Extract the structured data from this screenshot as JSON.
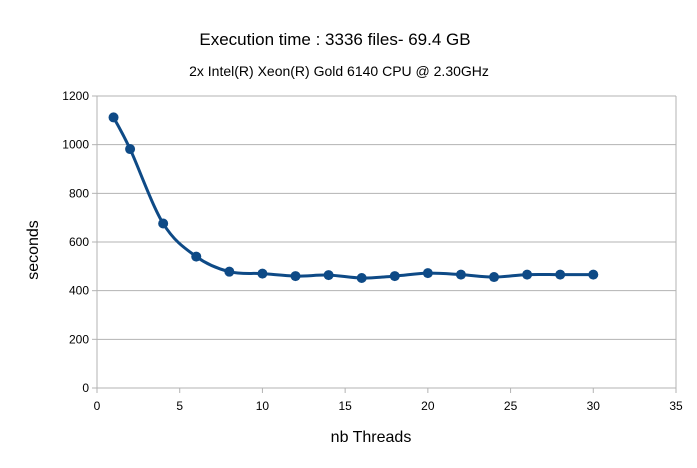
{
  "chart_data": {
    "type": "line",
    "title": "Execution time : 3336 files- 69.4 GB",
    "subtitle": "2x Intel(R) Xeon(R) Gold 6140 CPU @ 2.30GHz",
    "xlabel": "nb Threads",
    "ylabel": "seconds",
    "xlim": [
      0,
      35
    ],
    "ylim": [
      0,
      1200
    ],
    "xticks": [
      0,
      5,
      10,
      15,
      20,
      25,
      30,
      35
    ],
    "yticks": [
      0,
      200,
      400,
      600,
      800,
      1000,
      1200
    ],
    "grid": "horizontal",
    "smooth": true,
    "series": [
      {
        "color": "#0e4a86",
        "x": [
          1,
          2,
          4,
          6,
          8,
          10,
          12,
          14,
          16,
          18,
          20,
          22,
          24,
          26,
          28,
          30
        ],
        "y": [
          1112,
          982,
          676,
          540,
          478,
          470,
          460,
          464,
          452,
          460,
          472,
          466,
          456,
          466,
          466,
          466
        ]
      }
    ]
  }
}
